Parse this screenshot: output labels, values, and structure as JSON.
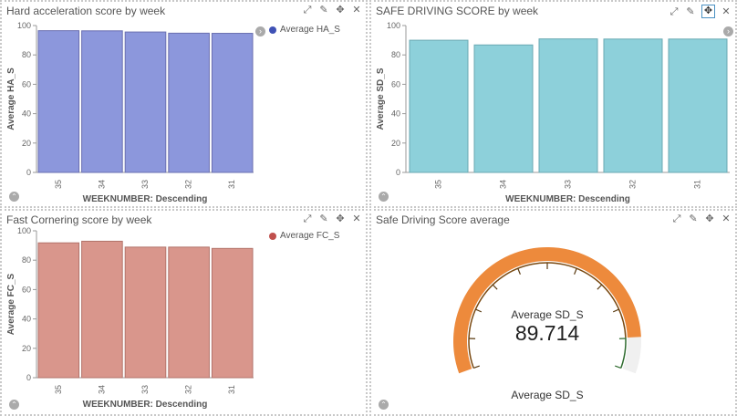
{
  "panels": [
    {
      "title": "Hard acceleration score by week",
      "legend": "Average HA_S",
      "color": "#8c97dc",
      "stroke": "#6a6fb0",
      "legend_color": "#3f51b5",
      "chart_data": {
        "type": "bar",
        "categories": [
          "35",
          "34",
          "33",
          "32",
          "31"
        ],
        "values": [
          96.5,
          96.4,
          95.6,
          94.8,
          94.7
        ],
        "xlabel": "WEEKNUMBER: Descending",
        "ylabel": "Average HA_S",
        "ylim": [
          0,
          100
        ],
        "yticks": [
          0,
          20,
          40,
          60,
          80,
          100
        ]
      }
    },
    {
      "title": "SAFE DRIVING SCORE by week",
      "legend": "",
      "color": "#8dd0da",
      "stroke": "#6aa9b3",
      "legend_color": "",
      "chart_data": {
        "type": "bar",
        "categories": [
          "35",
          "34",
          "33",
          "32",
          "31"
        ],
        "values": [
          90.0,
          86.8,
          90.9,
          90.8,
          90.8
        ],
        "xlabel": "WEEKNUMBER: Descending",
        "ylabel": "Average SD_S",
        "ylim": [
          0,
          100
        ],
        "yticks": [
          0,
          20,
          40,
          60,
          80,
          100
        ]
      }
    },
    {
      "title": "Fast Cornering score by week",
      "legend": "Average FC_S",
      "color": "#d9968c",
      "stroke": "#b2736a",
      "legend_color": "#c0504d",
      "chart_data": {
        "type": "bar",
        "categories": [
          "35",
          "34",
          "33",
          "32",
          "31"
        ],
        "values": [
          91.8,
          92.9,
          88.9,
          88.9,
          88.0
        ],
        "xlabel": "WEEKNUMBER: Descending",
        "ylabel": "Average FC_S",
        "ylim": [
          0,
          100
        ],
        "yticks": [
          0,
          20,
          40,
          60,
          80,
          100
        ]
      }
    },
    {
      "title": "Safe Driving Score average",
      "gauge": {
        "label": "Average SD_S",
        "value": "89.714",
        "fraction": 0.89714,
        "footer": "Average SD_S",
        "fill_color": "#ed8a3c",
        "track_color": "#f0f0f0"
      }
    }
  ],
  "controls": {
    "expand": "⤢",
    "edit": "✎",
    "move": "✥",
    "close": "✕"
  }
}
